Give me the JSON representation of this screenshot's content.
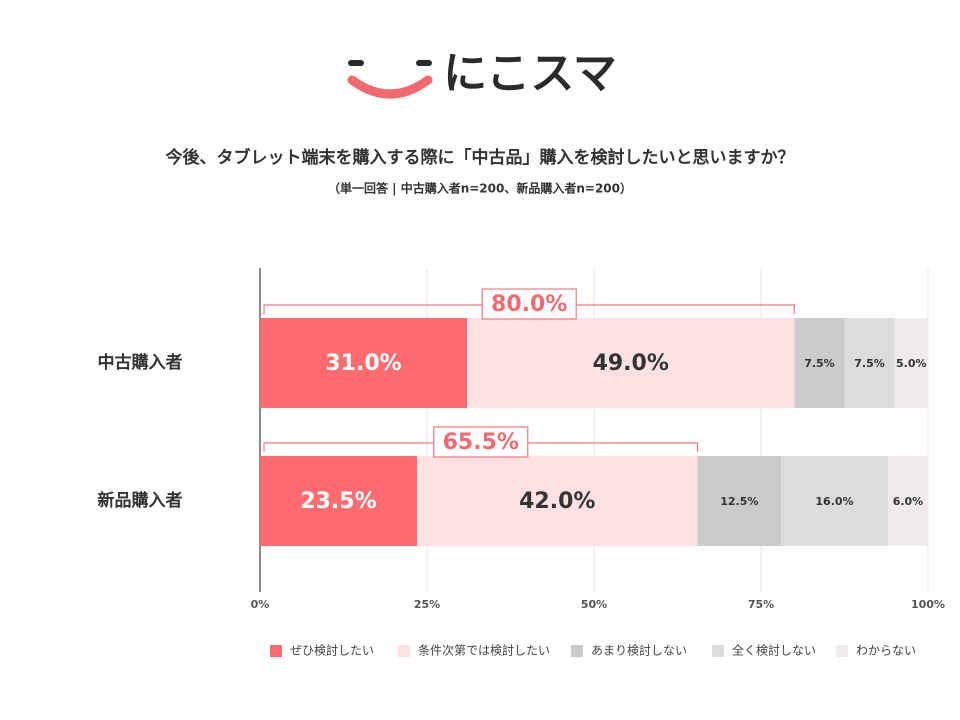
{
  "logo": "にこスマ",
  "chart_data": {
    "type": "stacked-barh",
    "title": "今後、タブレット端末を購入する際に「中古品」購入を検討したいと思いますか？",
    "subtitle": "（単一回答 | 中古購入者n=200、新品購入者n=200）",
    "categories": [
      "中古購入者",
      "新品購入者"
    ],
    "series": [
      {
        "name": "ぜひ検討したい",
        "color": "#ff6b6e",
        "values": [
          31,
          23.5
        ],
        "value_labels": [
          "31.0%",
          "23.5%"
        ]
      },
      {
        "name": "条件次第では検討したい",
        "color": "#ffe1e4",
        "values": [
          49,
          42
        ],
        "value_labels": [
          "49.0%",
          "42.0%"
        ]
      },
      {
        "name": "あまり検討しない",
        "color": "#cbcbcb",
        "values": [
          7.5,
          12.5
        ],
        "value_labels": [
          "7.5%",
          "12.5%"
        ]
      },
      {
        "name": "全く検討しない",
        "color": "#dcdcdc",
        "values": [
          7.5,
          16
        ],
        "value_labels": [
          "7.5%",
          "16.0%"
        ]
      },
      {
        "name": "わからない",
        "color": "#efebeb",
        "values": [
          5,
          6
        ],
        "value_labels": [
          "5.0%",
          "6.0%"
        ]
      }
    ],
    "annotations": [
      {
        "value": 80,
        "label": "80.0%"
      },
      {
        "value": 65.5,
        "label": "65.5%"
      }
    ],
    "xlim": [
      0,
      100
    ],
    "xticks": [
      {
        "value": 0,
        "label": "0%"
      },
      {
        "value": 25,
        "label": "25%"
      },
      {
        "value": 50,
        "label": "50%"
      },
      {
        "value": 75,
        "label": "75%"
      },
      {
        "value": 100,
        "label": "100%"
      }
    ],
    "grid": true,
    "legend": "bottom"
  }
}
